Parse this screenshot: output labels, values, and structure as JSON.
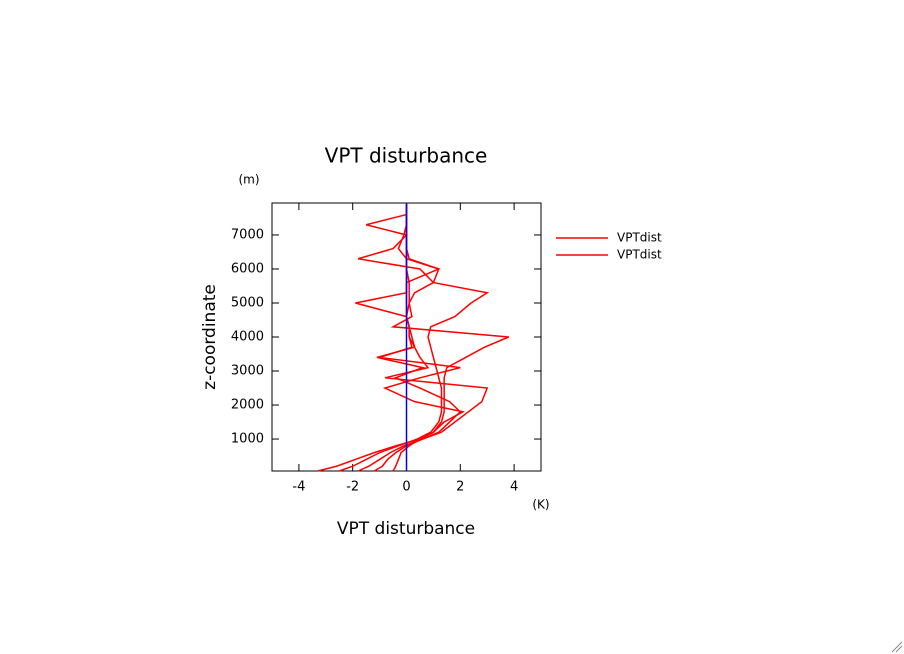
{
  "chart_data": {
    "type": "line",
    "title": "VPT disturbance",
    "x_label": "VPT disturbance",
    "x_unit": "(K)",
    "y_label": "z-coordinate",
    "y_unit": "(m)",
    "y": [
      60,
      200,
      400,
      600,
      800,
      1000,
      1200,
      1500,
      1800,
      2100,
      2500,
      2800,
      3100,
      3400,
      3700,
      4000,
      4300,
      4600,
      5000,
      5300,
      5600,
      6000,
      6300,
      6600,
      7000,
      7300,
      7600,
      7900
    ],
    "series": [
      {
        "name": "VPTdist",
        "color": "#ff0000",
        "values": [
          -3.3,
          -2.6,
          -1.9,
          -1.2,
          -0.4,
          0.5,
          1.0,
          1.3,
          1.4,
          1.4,
          1.4,
          1.4,
          1.5,
          2.2,
          2.9,
          3.8,
          -0.5,
          0.2,
          0.1,
          0.1,
          0.1,
          0.0,
          0.0,
          0.0,
          0.0,
          0.0,
          0.0,
          0.0
        ]
      },
      {
        "name": "VPTdist",
        "color": "#ff0000",
        "values": [
          -2.5,
          -2.0,
          -1.5,
          -1.0,
          -0.3,
          0.4,
          0.9,
          1.2,
          1.3,
          1.3,
          1.3,
          1.2,
          1.1,
          1.0,
          0.9,
          0.8,
          0.9,
          1.8,
          2.4,
          3.0,
          1.0,
          0.5,
          -1.8,
          -0.5,
          0.0,
          0.0,
          0.0,
          0.0
        ]
      },
      {
        "color": "#ff0000",
        "values": [
          -1.8,
          -1.4,
          -1.0,
          -0.6,
          -0.1,
          0.6,
          1.3,
          1.8,
          2.3,
          2.8,
          3.0,
          -0.8,
          0.8,
          0.5,
          0.3,
          0.2,
          0.1,
          0.0,
          -1.9,
          0.0,
          0.0,
          0.0,
          0.0,
          0.0,
          0.0,
          0.0,
          0.0,
          0.0
        ]
      },
      {
        "color": "#ff0000",
        "values": [
          -1.2,
          -0.9,
          -0.7,
          -0.4,
          0.0,
          0.6,
          1.2,
          1.6,
          2.0,
          1.6,
          0.5,
          -0.4,
          0.6,
          -1.1,
          0.3,
          0.1,
          0.1,
          0.0,
          0.1,
          0.3,
          1.0,
          1.2,
          0.1,
          0.0,
          0.0,
          -1.5,
          0.0,
          0.0
        ]
      },
      {
        "color": "#ff0000",
        "values": [
          -0.5,
          -0.4,
          -0.3,
          -0.2,
          0.1,
          0.5,
          1.0,
          1.4,
          2.1,
          0.3,
          -0.8,
          0.5,
          2.0,
          -1.0,
          0.2,
          0.1,
          0.1,
          0.0,
          0.0,
          0.0,
          0.0,
          1.2,
          0.0,
          -0.3,
          -0.1,
          0.0,
          0.0,
          0.0
        ]
      }
    ],
    "vline": {
      "x": 0,
      "color": "#0000ff"
    },
    "xlim": [
      -5,
      5
    ],
    "xticks": [
      -4,
      -2,
      0,
      2,
      4
    ],
    "ylim": [
      60,
      7940
    ],
    "yticks": [
      1000,
      2000,
      3000,
      4000,
      5000,
      6000,
      7000
    ]
  }
}
